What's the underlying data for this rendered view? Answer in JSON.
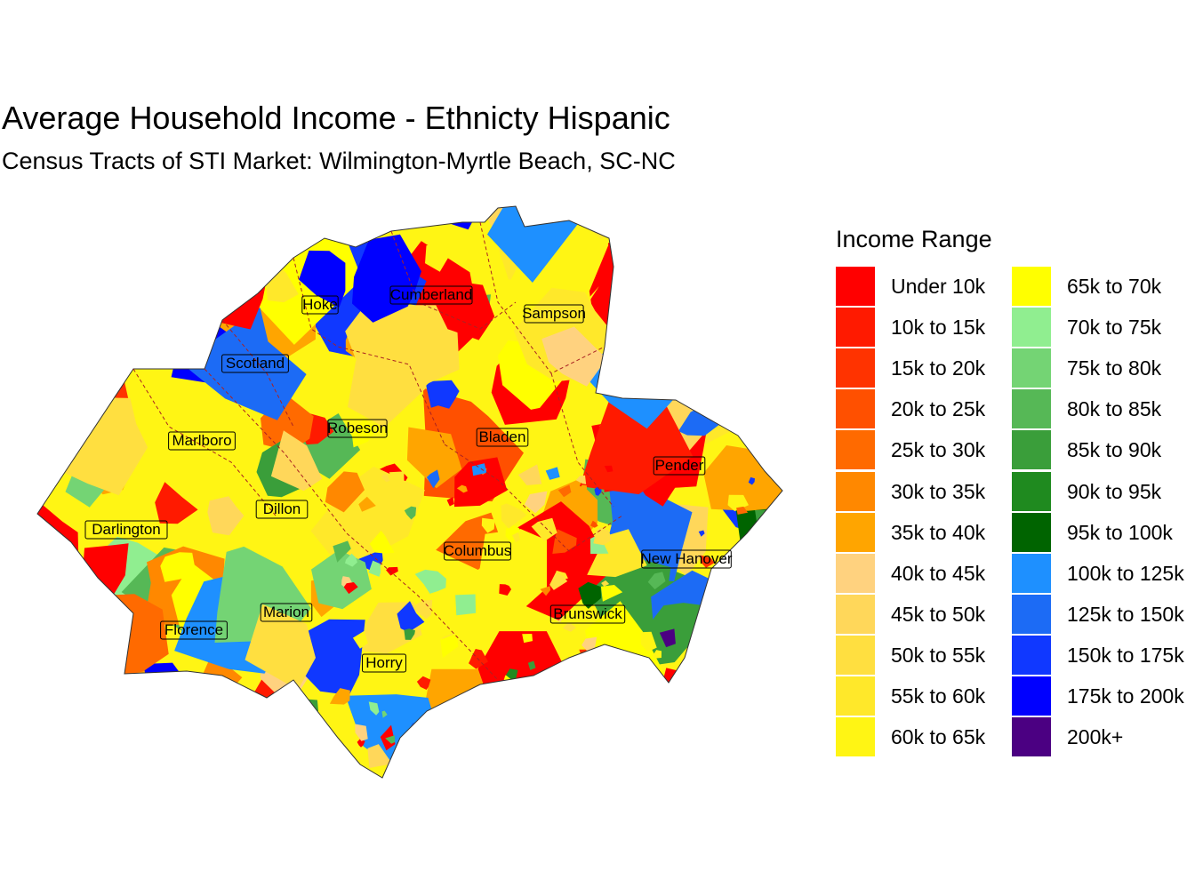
{
  "title": "Average Household Income - Ethnicty Hispanic",
  "subtitle": "Census Tracts of STI Market: Wilmington-Myrtle Beach, SC-NC",
  "legend": {
    "title": "Income Range",
    "items": [
      {
        "label": "Under 10k",
        "color": "#FF0000"
      },
      {
        "label": "10k to 15k",
        "color": "#FF1A00"
      },
      {
        "label": "15k to 20k",
        "color": "#FF3300"
      },
      {
        "label": "20k to 25k",
        "color": "#FF5000"
      },
      {
        "label": "25k to 30k",
        "color": "#FF6A00"
      },
      {
        "label": "30k to 35k",
        "color": "#FF8800"
      },
      {
        "label": "35k to 40k",
        "color": "#FFA500"
      },
      {
        "label": "40k to 45k",
        "color": "#FFD27F"
      },
      {
        "label": "45k to 50k",
        "color": "#FFD75A"
      },
      {
        "label": "50k to 55k",
        "color": "#FFDF40"
      },
      {
        "label": "55k to 60k",
        "color": "#FFE82A"
      },
      {
        "label": "60k to 65k",
        "color": "#FFF514"
      },
      {
        "label": "65k to 70k",
        "color": "#FFFF00"
      },
      {
        "label": "70k to 75k",
        "color": "#90EE90"
      },
      {
        "label": "75k to 80k",
        "color": "#74D474"
      },
      {
        "label": "80k to 85k",
        "color": "#56B856"
      },
      {
        "label": "85k to 90k",
        "color": "#3A9E3A"
      },
      {
        "label": "90k to 95k",
        "color": "#1F8A1F"
      },
      {
        "label": "95k to 100k",
        "color": "#006400"
      },
      {
        "label": "100k to 125k",
        "color": "#1E90FF"
      },
      {
        "label": "125k to 150k",
        "color": "#1C6BF5"
      },
      {
        "label": "150k to 175k",
        "color": "#1038FF"
      },
      {
        "label": "175k to 200k",
        "color": "#0000FF"
      },
      {
        "label": "200k+",
        "color": "#4B0082"
      }
    ]
  },
  "counties": [
    {
      "name": "Hoke"
    },
    {
      "name": "Cumberland"
    },
    {
      "name": "Sampson"
    },
    {
      "name": "Scotland"
    },
    {
      "name": "Robeson"
    },
    {
      "name": "Bladen"
    },
    {
      "name": "Marlboro"
    },
    {
      "name": "Pender"
    },
    {
      "name": "Dillon"
    },
    {
      "name": "Darlington"
    },
    {
      "name": "Columbus"
    },
    {
      "name": "New Hanover"
    },
    {
      "name": "Marion"
    },
    {
      "name": "Brunswick"
    },
    {
      "name": "Florence"
    },
    {
      "name": "Horry"
    }
  ]
}
